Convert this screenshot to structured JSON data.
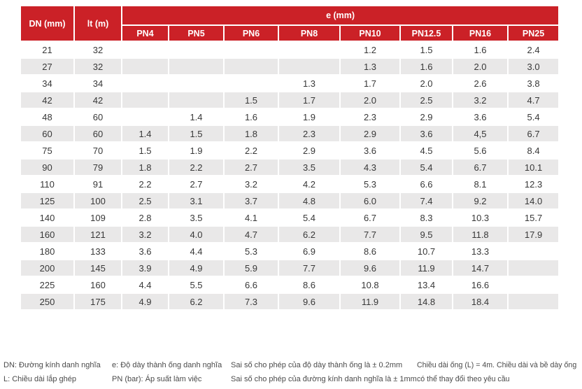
{
  "table": {
    "col_headers": {
      "dn": "DN (mm)",
      "lt": "lt (m)",
      "e": "e (mm)",
      "pn": [
        "PN4",
        "PN5",
        "PN6",
        "PN8",
        "PN10",
        "PN12.5",
        "PN16",
        "PN25"
      ]
    },
    "rows": [
      {
        "dn": "21",
        "lt": "32",
        "values": [
          "",
          "",
          "",
          "",
          "1.2",
          "1.5",
          "1.6",
          "2.4"
        ]
      },
      {
        "dn": "27",
        "lt": "32",
        "values": [
          "",
          "",
          "",
          "",
          "1.3",
          "1.6",
          "2.0",
          "3.0"
        ]
      },
      {
        "dn": "34",
        "lt": "34",
        "values": [
          "",
          "",
          "",
          "1.3",
          "1.7",
          "2.0",
          "2.6",
          "3.8"
        ]
      },
      {
        "dn": "42",
        "lt": "42",
        "values": [
          "",
          "",
          "1.5",
          "1.7",
          "2.0",
          "2.5",
          "3.2",
          "4.7"
        ]
      },
      {
        "dn": "48",
        "lt": "60",
        "values": [
          "",
          "1.4",
          "1.6",
          "1.9",
          "2.3",
          "2.9",
          "3.6",
          "5.4"
        ]
      },
      {
        "dn": "60",
        "lt": "60",
        "values": [
          "1.4",
          "1.5",
          "1.8",
          "2.3",
          "2.9",
          "3.6",
          "4,5",
          "6.7"
        ]
      },
      {
        "dn": "75",
        "lt": "70",
        "values": [
          "1.5",
          "1.9",
          "2.2",
          "2.9",
          "3.6",
          "4.5",
          "5.6",
          "8.4"
        ]
      },
      {
        "dn": "90",
        "lt": "79",
        "values": [
          "1.8",
          "2.2",
          "2.7",
          "3.5",
          "4.3",
          "5.4",
          "6.7",
          "10.1"
        ]
      },
      {
        "dn": "110",
        "lt": "91",
        "values": [
          "2.2",
          "2.7",
          "3.2",
          "4.2",
          "5.3",
          "6.6",
          "8.1",
          "12.3"
        ]
      },
      {
        "dn": "125",
        "lt": "100",
        "values": [
          "2.5",
          "3.1",
          "3.7",
          "4.8",
          "6.0",
          "7.4",
          "9.2",
          "14.0"
        ]
      },
      {
        "dn": "140",
        "lt": "109",
        "values": [
          "2.8",
          "3.5",
          "4.1",
          "5.4",
          "6.7",
          "8.3",
          "10.3",
          "15.7"
        ]
      },
      {
        "dn": "160",
        "lt": "121",
        "values": [
          "3.2",
          "4.0",
          "4.7",
          "6.2",
          "7.7",
          "9.5",
          "11.8",
          "17.9"
        ]
      },
      {
        "dn": "180",
        "lt": "133",
        "values": [
          "3.6",
          "4.4",
          "5.3",
          "6.9",
          "8.6",
          "10.7",
          "13.3",
          ""
        ]
      },
      {
        "dn": "200",
        "lt": "145",
        "values": [
          "3.9",
          "4.9",
          "5.9",
          "7.7",
          "9.6",
          "11.9",
          "14.7",
          ""
        ]
      },
      {
        "dn": "225",
        "lt": "160",
        "values": [
          "4.4",
          "5.5",
          "6.6",
          "8.6",
          "10.8",
          "13.4",
          "16.6",
          ""
        ]
      },
      {
        "dn": "250",
        "lt": "175",
        "values": [
          "4.9",
          "6.2",
          "7.3",
          "9.6",
          "11.9",
          "14.8",
          "18.4",
          ""
        ]
      }
    ]
  },
  "footnotes": {
    "col1": [
      "DN: Đường kính danh nghĩa",
      "L: Chiều dài lắp ghép"
    ],
    "col2": [
      "e: Độ dày thành ống danh nghĩa",
      "PN (bar): Áp suất làm việc"
    ],
    "col3": [
      "Sai số cho phép của độ dày thành ống là ± 0.2mm",
      "Sai số cho phép của đường kính danh nghĩa là ± 1mm"
    ],
    "col4": [
      "Chiều dài ống (L) = 4m. Chiều dài và bề dày ống",
      "có thể thay đổi theo yêu cầu"
    ]
  },
  "colors": {
    "header_red": "#cb2127",
    "row_alt_gray": "#e9e8e8",
    "data_text": "#383838"
  }
}
